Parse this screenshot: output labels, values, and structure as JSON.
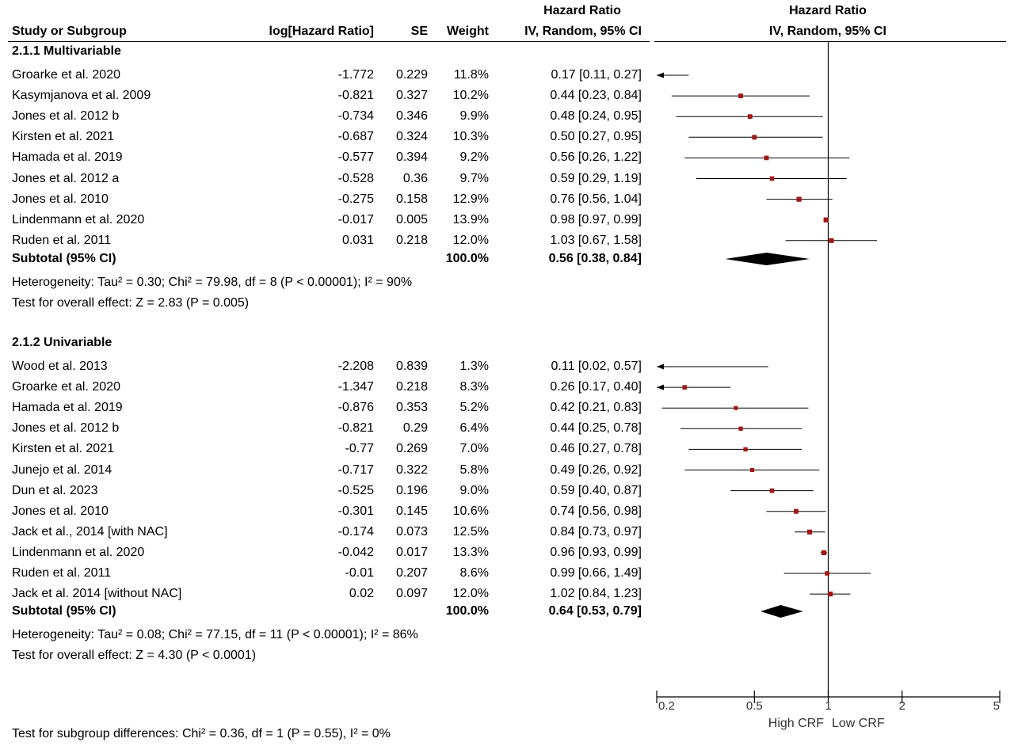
{
  "header": {
    "hr_top_left": "Hazard Ratio",
    "hr_top_right": "Hazard Ratio",
    "col_study": "Study or Subgroup",
    "col_loghr": "log[Hazard Ratio]",
    "col_se": "SE",
    "col_weight": "Weight",
    "col_ci": "IV, Random, 95% CI",
    "col_plot": "IV, Random, 95% CI"
  },
  "groups": [
    {
      "title": "2.1.1 Multivariable",
      "studies": [
        {
          "name": "Groarke et al. 2020",
          "loghr": "-1.772",
          "se": "0.229",
          "weight": "11.8%",
          "ci": "0.17 [0.11, 0.27]",
          "hr": 0.17,
          "lo": 0.11,
          "hi": 0.27
        },
        {
          "name": "Kasymjanova et al. 2009",
          "loghr": "-0.821",
          "se": "0.327",
          "weight": "10.2%",
          "ci": "0.44 [0.23, 0.84]",
          "hr": 0.44,
          "lo": 0.23,
          "hi": 0.84
        },
        {
          "name": "Jones et al. 2012 b",
          "loghr": "-0.734",
          "se": "0.346",
          "weight": "9.9%",
          "ci": "0.48 [0.24, 0.95]",
          "hr": 0.48,
          "lo": 0.24,
          "hi": 0.95
        },
        {
          "name": "Kirsten et al. 2021",
          "loghr": "-0.687",
          "se": "0.324",
          "weight": "10.3%",
          "ci": "0.50 [0.27, 0.95]",
          "hr": 0.5,
          "lo": 0.27,
          "hi": 0.95
        },
        {
          "name": "Hamada et al. 2019",
          "loghr": "-0.577",
          "se": "0.394",
          "weight": "9.2%",
          "ci": "0.56 [0.26, 1.22]",
          "hr": 0.56,
          "lo": 0.26,
          "hi": 1.22
        },
        {
          "name": "Jones et al. 2012 a",
          "loghr": "-0.528",
          "se": "0.36",
          "weight": "9.7%",
          "ci": "0.59 [0.29, 1.19]",
          "hr": 0.59,
          "lo": 0.29,
          "hi": 1.19
        },
        {
          "name": "Jones et al. 2010",
          "loghr": "-0.275",
          "se": "0.158",
          "weight": "12.9%",
          "ci": "0.76 [0.56, 1.04]",
          "hr": 0.76,
          "lo": 0.56,
          "hi": 1.04
        },
        {
          "name": "Lindenmann et al. 2020",
          "loghr": "-0.017",
          "se": "0.005",
          "weight": "13.9%",
          "ci": "0.98 [0.97, 0.99]",
          "hr": 0.98,
          "lo": 0.97,
          "hi": 0.99
        },
        {
          "name": "Ruden et al. 2011",
          "loghr": "0.031",
          "se": "0.218",
          "weight": "12.0%",
          "ci": "1.03 [0.67, 1.58]",
          "hr": 1.03,
          "lo": 0.67,
          "hi": 1.58
        }
      ],
      "subtotal": {
        "label": "Subtotal (95% CI)",
        "weight": "100.0%",
        "ci": "0.56 [0.38, 0.84]",
        "hr": 0.56,
        "lo": 0.38,
        "hi": 0.84
      },
      "heterogeneity": "Heterogeneity: Tau² = 0.30; Chi² = 79.98, df = 8 (P < 0.00001); I² = 90%",
      "overall": "Test for overall effect: Z = 2.83 (P = 0.005)"
    },
    {
      "title": "2.1.2 Univariable",
      "studies": [
        {
          "name": "Wood et al. 2013",
          "loghr": "-2.208",
          "se": "0.839",
          "weight": "1.3%",
          "ci": "0.11 [0.02, 0.57]",
          "hr": 0.11,
          "lo": 0.02,
          "hi": 0.57
        },
        {
          "name": "Groarke et al. 2020",
          "loghr": "-1.347",
          "se": "0.218",
          "weight": "8.3%",
          "ci": "0.26 [0.17, 0.40]",
          "hr": 0.26,
          "lo": 0.17,
          "hi": 0.4
        },
        {
          "name": "Hamada et al. 2019",
          "loghr": "-0.876",
          "se": "0.353",
          "weight": "5.2%",
          "ci": "0.42 [0.21, 0.83]",
          "hr": 0.42,
          "lo": 0.21,
          "hi": 0.83
        },
        {
          "name": "Jones et al. 2012 b",
          "loghr": "-0.821",
          "se": "0.29",
          "weight": "6.4%",
          "ci": "0.44 [0.25, 0.78]",
          "hr": 0.44,
          "lo": 0.25,
          "hi": 0.78
        },
        {
          "name": "Kirsten et al. 2021",
          "loghr": "-0.77",
          "se": "0.269",
          "weight": "7.0%",
          "ci": "0.46 [0.27, 0.78]",
          "hr": 0.46,
          "lo": 0.27,
          "hi": 0.78
        },
        {
          "name": "Junejo et al. 2014",
          "loghr": "-0.717",
          "se": "0.322",
          "weight": "5.8%",
          "ci": "0.49 [0.26, 0.92]",
          "hr": 0.49,
          "lo": 0.26,
          "hi": 0.92
        },
        {
          "name": "Dun et al. 2023",
          "loghr": "-0.525",
          "se": "0.196",
          "weight": "9.0%",
          "ci": "0.59 [0.40, 0.87]",
          "hr": 0.59,
          "lo": 0.4,
          "hi": 0.87
        },
        {
          "name": "Jones et al. 2010",
          "loghr": "-0.301",
          "se": "0.145",
          "weight": "10.6%",
          "ci": "0.74 [0.56, 0.98]",
          "hr": 0.74,
          "lo": 0.56,
          "hi": 0.98
        },
        {
          "name": "Jack et al., 2014 [with NAC]",
          "loghr": "-0.174",
          "se": "0.073",
          "weight": "12.5%",
          "ci": "0.84 [0.73, 0.97]",
          "hr": 0.84,
          "lo": 0.73,
          "hi": 0.97
        },
        {
          "name": "Lindenmann et al. 2020",
          "loghr": "-0.042",
          "se": "0.017",
          "weight": "13.3%",
          "ci": "0.96 [0.93, 0.99]",
          "hr": 0.96,
          "lo": 0.93,
          "hi": 0.99
        },
        {
          "name": "Ruden et al. 2011",
          "loghr": "-0.01",
          "se": "0.207",
          "weight": "8.6%",
          "ci": "0.99 [0.66, 1.49]",
          "hr": 0.99,
          "lo": 0.66,
          "hi": 1.49
        },
        {
          "name": "Jack et al. 2014 [without NAC]",
          "loghr": "0.02",
          "se": "0.097",
          "weight": "12.0%",
          "ci": "1.02 [0.84, 1.23]",
          "hr": 1.02,
          "lo": 0.84,
          "hi": 1.23
        }
      ],
      "subtotal": {
        "label": "Subtotal (95% CI)",
        "weight": "100.0%",
        "ci": "0.64 [0.53, 0.79]",
        "hr": 0.64,
        "lo": 0.53,
        "hi": 0.79
      },
      "heterogeneity": "Heterogeneity: Tau² = 0.08; Chi² = 77.15, df = 11 (P < 0.00001); I² = 86%",
      "overall": "Test for overall effect: Z = 4.30 (P < 0.0001)"
    }
  ],
  "footer": {
    "subgroup_test": "Test for subgroup differences: Chi² = 0.36, df = 1 (P = 0.55), I² = 0%",
    "favours_left": "High CRF",
    "favours_right": "Low CRF"
  },
  "colors": {
    "marker": "#a01818",
    "line": "#000000",
    "diamond": "#000000"
  },
  "chart_data": {
    "type": "forest",
    "scale": "log",
    "xlim": [
      0.2,
      5
    ],
    "ticks": [
      "0.2",
      "0.5",
      "1",
      "2",
      "5"
    ],
    "tick_values": [
      0.2,
      0.5,
      1,
      2,
      5
    ],
    "reference_line": 1,
    "xlabel_left": "High CRF",
    "xlabel_right": "Low CRF"
  }
}
